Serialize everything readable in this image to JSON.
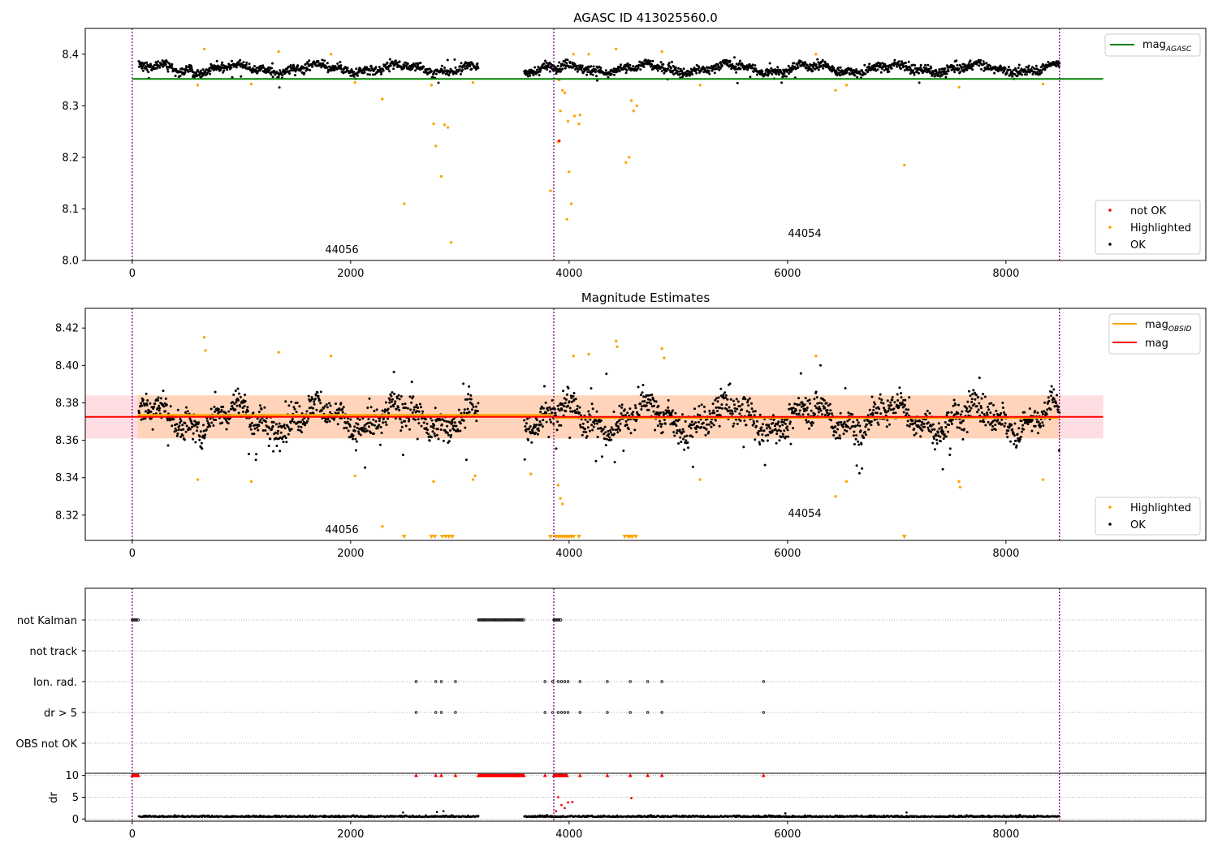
{
  "figure": {
    "title": "AGASC ID 413025560.0",
    "obsids": [
      "44056",
      "44054"
    ],
    "x_ticks": [
      0,
      2000,
      4000,
      6000,
      8000
    ],
    "xlim": [
      -430,
      9830
    ],
    "obsid_boundaries": [
      0,
      3860,
      8490
    ],
    "data_end": 8490
  },
  "colors": {
    "ok": "#000000",
    "highlighted": "#ffa500",
    "not_ok": "#ff0000",
    "agasc": "#008000",
    "obsid_mag": "#ffa500",
    "mag": "#ff0000",
    "boundary": "#800080",
    "band_pink": "#ffb6c1",
    "band_orange": "#ffa500"
  },
  "chart_data": [
    {
      "type": "scatter",
      "title": "AGASC ID 413025560.0",
      "ylim": [
        8.0,
        8.45
      ],
      "y_ticks": [
        "8.0",
        "8.1",
        "8.2",
        "8.3",
        "8.4"
      ],
      "agasc_mag": 8.352,
      "legend_lines": [
        "mag",
        "AGASC"
      ],
      "legend_points": [
        "not OK",
        "Highlighted",
        "OK"
      ],
      "legend_placement": [
        "upper right",
        "lower right"
      ],
      "ok_baseline": 8.372,
      "highlighted_points": [
        [
          660,
          8.41
        ],
        [
          600,
          8.34
        ],
        [
          1340,
          8.405
        ],
        [
          1820,
          8.4
        ],
        [
          1090,
          8.342
        ],
        [
          2040,
          8.345
        ],
        [
          2290,
          8.313
        ],
        [
          2760,
          8.265
        ],
        [
          2780,
          8.222
        ],
        [
          2830,
          8.163
        ],
        [
          2860,
          8.263
        ],
        [
          2890,
          8.258
        ],
        [
          2490,
          8.11
        ],
        [
          2920,
          8.035
        ],
        [
          2740,
          8.34
        ],
        [
          3120,
          8.345
        ],
        [
          3830,
          8.135
        ],
        [
          3900,
          8.23
        ],
        [
          3920,
          8.29
        ],
        [
          3940,
          8.33
        ],
        [
          3960,
          8.325
        ],
        [
          3980,
          8.08
        ],
        [
          3990,
          8.27
        ],
        [
          4000,
          8.172
        ],
        [
          4020,
          8.11
        ],
        [
          4040,
          8.4
        ],
        [
          4050,
          8.28
        ],
        [
          4090,
          8.265
        ],
        [
          4100,
          8.282
        ],
        [
          4180,
          8.4
        ],
        [
          4430,
          8.41
        ],
        [
          4520,
          8.19
        ],
        [
          4550,
          8.2
        ],
        [
          4570,
          8.31
        ],
        [
          4590,
          8.29
        ],
        [
          4620,
          8.3
        ],
        [
          4850,
          8.405
        ],
        [
          5200,
          8.34
        ],
        [
          6260,
          8.4
        ],
        [
          6440,
          8.33
        ],
        [
          6540,
          8.34
        ],
        [
          7070,
          8.185
        ],
        [
          7570,
          8.336
        ],
        [
          8340,
          8.342
        ],
        [
          3910,
          8.35
        ]
      ],
      "not_ok_points": [
        [
          3910,
          8.232
        ]
      ]
    },
    {
      "type": "scatter",
      "title": "Magnitude Estimates",
      "ylim": [
        8.3065,
        8.4305
      ],
      "y_ticks": [
        "8.32",
        "8.34",
        "8.36",
        "8.38",
        "8.40",
        "8.42"
      ],
      "mag": 8.3725,
      "mag_band": [
        8.361,
        8.384
      ],
      "obsid_mag": [
        {
          "x": [
            50,
            3860
          ],
          "y": 8.3735
        },
        {
          "x": [
            3860,
            8490
          ],
          "y": 8.372
        }
      ],
      "legend_lines": [
        "mag",
        "OBSID",
        "mag"
      ],
      "legend_points": [
        "Highlighted",
        "OK"
      ],
      "legend_placement": [
        "upper right",
        "lower right"
      ],
      "ok_baseline": 8.372,
      "highlighted_points": [
        [
          600,
          8.339
        ],
        [
          660,
          8.415
        ],
        [
          670,
          8.408
        ],
        [
          1090,
          8.338
        ],
        [
          1340,
          8.407
        ],
        [
          1820,
          8.405
        ],
        [
          2040,
          8.341
        ],
        [
          2290,
          8.314
        ],
        [
          2760,
          8.338
        ],
        [
          3120,
          8.339
        ],
        [
          3140,
          8.341
        ],
        [
          3650,
          8.342
        ],
        [
          3900,
          8.336
        ],
        [
          3920,
          8.329
        ],
        [
          3940,
          8.326
        ],
        [
          4040,
          8.405
        ],
        [
          4180,
          8.406
        ],
        [
          4430,
          8.413
        ],
        [
          4440,
          8.41
        ],
        [
          4850,
          8.409
        ],
        [
          4870,
          8.404
        ],
        [
          5200,
          8.339
        ],
        [
          6260,
          8.405
        ],
        [
          6440,
          8.33
        ],
        [
          6540,
          8.338
        ],
        [
          7570,
          8.338
        ],
        [
          7580,
          8.335
        ],
        [
          8340,
          8.339
        ]
      ],
      "clipped_x": [
        2490,
        2740,
        2770,
        2840,
        2870,
        2900,
        2930,
        3830,
        3880,
        3900,
        3920,
        3940,
        3960,
        3980,
        4000,
        4020,
        4040,
        4090,
        4510,
        4540,
        4560,
        4580,
        4610,
        7070
      ]
    },
    {
      "type": "scatter",
      "title": "",
      "flag_rows": [
        "not Kalman",
        "not track",
        "Ion. rad.",
        "dr > 5",
        "OBS not OK"
      ],
      "not_kalman_ranges": [
        [
          0,
          60
        ],
        [
          3170,
          3590
        ],
        [
          3860,
          3930
        ]
      ],
      "ion_rad_x": [
        2600,
        2780,
        2830,
        2960,
        3780,
        3850,
        3900,
        3930,
        3960,
        3990,
        4100,
        4350,
        4560,
        4720,
        4850,
        5780
      ],
      "dr_gt5_x": [
        2600,
        2780,
        2830,
        2960,
        3780,
        3850,
        3900,
        3930,
        3960,
        3990,
        4100,
        4350,
        4560,
        4720,
        4850,
        5780
      ]
    },
    {
      "type": "scatter",
      "title": "",
      "ylabel": "dr",
      "ylim": [
        -0.5,
        10.5
      ],
      "y_ticks": [
        "0",
        "5",
        "10"
      ],
      "clip_value": 10,
      "clipped_red_ranges": [
        [
          0,
          60
        ],
        [
          3170,
          3590
        ],
        [
          3860,
          3980
        ]
      ],
      "clipped_red_x": [
        2600,
        2780,
        2830,
        2960,
        3780,
        4100,
        4350,
        4560,
        4720,
        4850,
        5780
      ],
      "red_points": [
        [
          3900,
          5.0
        ],
        [
          3930,
          3.2
        ],
        [
          3960,
          2.5
        ],
        [
          3990,
          3.8
        ],
        [
          4030,
          3.9
        ],
        [
          4570,
          4.8
        ],
        [
          3880,
          1.8
        ]
      ],
      "black_spikes": [
        [
          2480,
          1.5
        ],
        [
          2790,
          1.6
        ],
        [
          2850,
          1.8
        ],
        [
          5980,
          1.3
        ],
        [
          7090,
          1.5
        ]
      ]
    }
  ]
}
